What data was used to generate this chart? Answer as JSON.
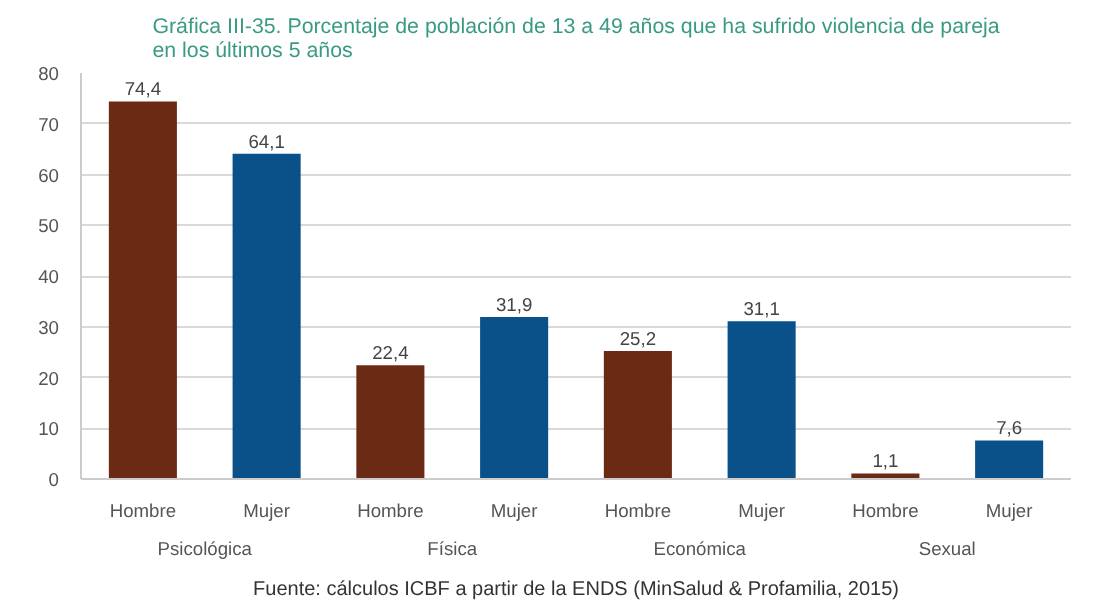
{
  "chart_data": {
    "type": "bar",
    "title": "Gráfica III-35. Porcentaje de población de 13 a 49 años que ha sufrido violencia de pareja en los últimos 5 años",
    "categories": [
      "Hombre",
      "Mujer",
      "Hombre",
      "Mujer",
      "Hombre",
      "Mujer",
      "Hombre",
      "Mujer"
    ],
    "values": [
      74.4,
      64.1,
      22.4,
      31.9,
      25.2,
      31.1,
      1.1,
      7.6
    ],
    "value_labels": [
      "74,4",
      "64,1",
      "22,4",
      "31,9",
      "25,2",
      "31,1",
      "1,1",
      "7,6"
    ],
    "colors": [
      "#6b2a14",
      "#0a5189",
      "#6b2a14",
      "#0a5189",
      "#6b2a14",
      "#0a5189",
      "#6b2a14",
      "#0a5189"
    ],
    "annotations": [
      "Psicológica",
      "Física",
      "Económica",
      "Sexual",
      "Fuente: cálculos ICBF a partir de la ENDS (MinSalud & Profamilia, 2015)"
    ],
    "ylim": [
      0,
      80
    ],
    "yticks": [
      0,
      10,
      20,
      30,
      40,
      50,
      60,
      70,
      80
    ],
    "grid": "y"
  }
}
